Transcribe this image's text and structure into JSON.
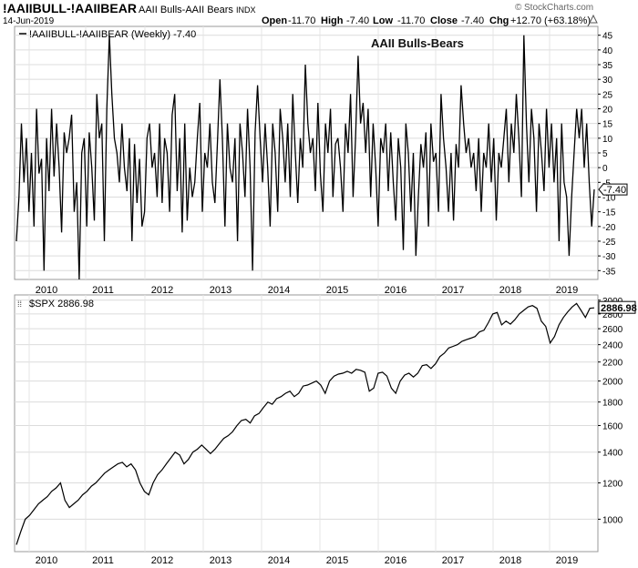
{
  "header": {
    "symbol": "!AAIIBULL-!AAIIBEAR",
    "name": "AAII Bulls-AAII Bears",
    "exchange": "INDX",
    "date": "14-Jun-2019",
    "open_label": "Open",
    "open": "-11.70",
    "high_label": "High",
    "high": "-7.40",
    "low_label": "Low",
    "low": "-11.70",
    "close_label": "Close",
    "close": "-7.40",
    "chg_label": "Chg",
    "chg": "+12.70 (+63.18%)",
    "brand": "StockCharts.com",
    "brand_symbol": "©",
    "chg_arrow_icon": "triangle-up-icon"
  },
  "colors": {
    "line": "#000000",
    "grid": "#d9d9d9",
    "border": "#999999",
    "background": "#ffffff"
  },
  "chart_data": [
    {
      "type": "line",
      "legend": "!AAIIBULL-!AAIIBEAR (Weekly) -7.40",
      "annotation": "AAII Bulls-Bears",
      "last_value_label": "-7.40",
      "ylim": [
        -38,
        48
      ],
      "yticks": [
        45,
        40,
        35,
        30,
        25,
        20,
        15,
        10,
        5,
        0,
        -5,
        -10,
        -15,
        -20,
        -25,
        -30,
        -35
      ],
      "x_labels": [
        "2010",
        "2011",
        "2012",
        "2013",
        "2014",
        "2015",
        "2016",
        "2017",
        "2018",
        "2019"
      ],
      "series": [
        {
          "values": [
            -25,
            -10,
            15,
            -5,
            10,
            -15,
            5,
            -20,
            20,
            -2,
            3,
            -35,
            10,
            -8,
            20,
            -3,
            15,
            0,
            -22,
            12,
            5,
            10,
            18,
            -15,
            -5,
            -38,
            5,
            10,
            -20,
            12,
            0,
            -18,
            25,
            10,
            15,
            -25,
            20,
            45,
            25,
            10,
            5,
            -5,
            15,
            0,
            -8,
            10,
            -25,
            8,
            -12,
            3,
            -20,
            -15,
            10,
            15,
            0,
            5,
            -10,
            15,
            -12,
            10,
            5,
            -15,
            18,
            25,
            -8,
            10,
            -22,
            15,
            -18,
            0,
            -10,
            -5,
            10,
            22,
            -15,
            5,
            0,
            15,
            -5,
            -12,
            8,
            30,
            10,
            -20,
            15,
            0,
            -5,
            10,
            -25,
            15,
            5,
            -10,
            20,
            0,
            -35,
            12,
            28,
            10,
            -5,
            15,
            0,
            -20,
            15,
            5,
            -15,
            20,
            10,
            -5,
            15,
            -10,
            25,
            5,
            -12,
            10,
            0,
            35,
            15,
            5,
            10,
            -8,
            22,
            -2,
            -15,
            15,
            5,
            20,
            -10,
            8,
            10,
            0,
            -15,
            15,
            5,
            25,
            -10,
            10,
            38,
            15,
            22,
            5,
            20,
            -10,
            15,
            0,
            -20,
            10,
            5,
            15,
            -8,
            12,
            -5,
            -18,
            10,
            0,
            -28,
            15,
            5,
            -15,
            5,
            -30,
            -10,
            8,
            0,
            12,
            -20,
            15,
            2,
            5,
            -15,
            25,
            10,
            0,
            -15,
            5,
            -18,
            8,
            0,
            28,
            15,
            5,
            10,
            0,
            5,
            -8,
            10,
            -15,
            5,
            0,
            15,
            -5,
            10,
            -18,
            5,
            0,
            10,
            20,
            -5,
            15,
            5,
            25,
            10,
            -10,
            45,
            15,
            -5,
            20,
            10,
            -15,
            15,
            5,
            -8,
            20,
            0,
            15,
            -5,
            10,
            -25,
            15,
            -5,
            -10,
            -30,
            -10,
            5,
            20,
            10,
            20,
            0,
            15,
            -5,
            -20,
            -7.4
          ]
        }
      ]
    },
    {
      "type": "line",
      "legend": "$SPX 2886.98",
      "last_value_label": "2886.98",
      "log_scale": true,
      "ylim": [
        850,
        3080
      ],
      "yticks": [
        3000,
        2800,
        2600,
        2400,
        2200,
        2000,
        1800,
        1600,
        1400,
        1200,
        1000
      ],
      "x_labels": [
        "2010",
        "2011",
        "2012",
        "2013",
        "2014",
        "2015",
        "2016",
        "2017",
        "2018",
        "2019"
      ],
      "series": [
        {
          "values": [
            880,
            940,
            1000,
            1020,
            1050,
            1080,
            1100,
            1120,
            1150,
            1170,
            1200,
            1100,
            1060,
            1080,
            1100,
            1130,
            1150,
            1180,
            1200,
            1230,
            1260,
            1280,
            1300,
            1320,
            1330,
            1300,
            1320,
            1280,
            1200,
            1150,
            1130,
            1200,
            1250,
            1280,
            1320,
            1360,
            1400,
            1380,
            1320,
            1350,
            1400,
            1420,
            1450,
            1420,
            1390,
            1420,
            1460,
            1500,
            1520,
            1550,
            1600,
            1640,
            1650,
            1620,
            1680,
            1700,
            1750,
            1800,
            1780,
            1830,
            1850,
            1880,
            1900,
            1850,
            1880,
            1950,
            1960,
            1980,
            2000,
            1960,
            1880,
            2000,
            2050,
            2070,
            2080,
            2100,
            2080,
            2120,
            2110,
            2090,
            1900,
            1930,
            2080,
            2090,
            2050,
            1930,
            1880,
            2000,
            2060,
            2080,
            2040,
            2080,
            2160,
            2170,
            2130,
            2180,
            2260,
            2300,
            2360,
            2380,
            2400,
            2440,
            2460,
            2480,
            2500,
            2560,
            2580,
            2680,
            2800,
            2820,
            2650,
            2700,
            2660,
            2720,
            2800,
            2850,
            2900,
            2920,
            2880,
            2700,
            2630,
            2420,
            2500,
            2650,
            2750,
            2830,
            2900,
            2950,
            2850,
            2750,
            2880,
            2887
          ]
        }
      ]
    }
  ]
}
